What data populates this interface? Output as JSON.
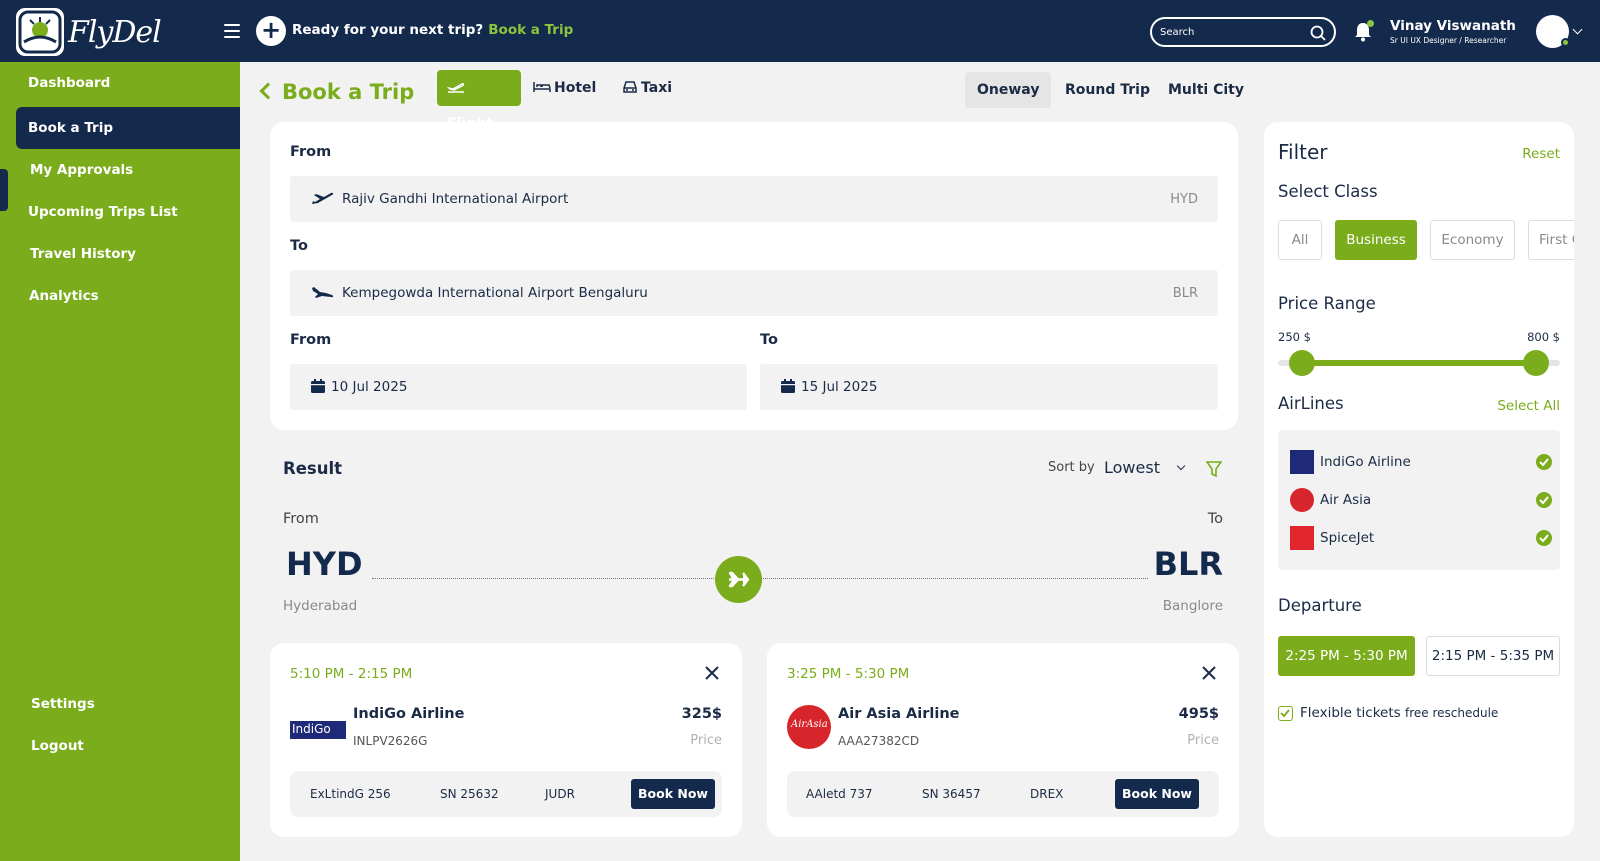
{
  "app": {
    "name": "FlyDel"
  },
  "header": {
    "prompt": "Ready for your next trip?",
    "prompt_link": "Book a Trip",
    "search_placeholder": "Search",
    "user_name": "Vinay Viswanath",
    "user_role": "Sr UI UX Designer / Researcher"
  },
  "sidebar": {
    "items": [
      {
        "label": "Dashboard"
      },
      {
        "label": "Book a Trip"
      },
      {
        "label": "My Approvals"
      },
      {
        "label": "Upcoming Trips List"
      },
      {
        "label": "Travel History"
      },
      {
        "label": "Analytics"
      }
    ],
    "settings": "Settings",
    "logout": "Logout"
  },
  "page": {
    "title": "Book a Trip"
  },
  "mode_tabs": [
    {
      "label": "Flight",
      "active": true
    },
    {
      "label": "Hotel"
    },
    {
      "label": "Taxi"
    }
  ],
  "trip_tabs": [
    {
      "label": "Oneway",
      "active": true
    },
    {
      "label": "Round Trip"
    },
    {
      "label": "Multi City"
    }
  ],
  "search": {
    "from_label": "From",
    "from_airport": "Rajiv Gandhi International Airport",
    "from_code": "HYD",
    "to_label": "To",
    "to_airport": "Kempegowda International Airport Bengaluru",
    "to_code": "BLR",
    "date_from_label": "From",
    "date_from": "10 Jul 2025",
    "date_to_label": "To",
    "date_to": "15 Jul 2025"
  },
  "result": {
    "title": "Result",
    "sort_label": "Sort by",
    "sort_value": "Lowest",
    "from_label": "From",
    "to_label": "To",
    "from_code": "HYD",
    "to_code": "BLR",
    "from_city": "Hyderabad",
    "to_city": "Banglore"
  },
  "flights": [
    {
      "time": "5:10 PM - 2:15 PM",
      "airline": "IndiGo Airline",
      "logo_text": "IndiGo",
      "code": "INLPV2626G",
      "price": "325$",
      "price_label": "Price",
      "details": [
        "ExLtindG 256",
        "SN 25632",
        "JUDR"
      ],
      "book": "Book Now"
    },
    {
      "time": "3:25 PM - 5:30 PM",
      "airline": "Air Asia Airline",
      "logo_text": "AirAsia",
      "code": "AAA27382CD",
      "price": "495$",
      "price_label": "Price",
      "details": [
        "AAletd 737",
        "SN 36457",
        "DREX"
      ],
      "book": "Book Now"
    }
  ],
  "filter": {
    "title": "Filter",
    "reset": "Reset",
    "class_title": "Select Class",
    "classes": [
      {
        "label": "All"
      },
      {
        "label": "Business",
        "active": true
      },
      {
        "label": "Economy"
      },
      {
        "label": "First Class"
      }
    ],
    "price_title": "Price Range",
    "price_min": "250 $",
    "price_max": "800 $",
    "price_min_fraction": 0.0,
    "price_max_fraction": 1.0,
    "airlines_title": "AirLines",
    "select_all": "Select All",
    "airlines": [
      {
        "name": "IndiGo Airline",
        "checked": true
      },
      {
        "name": "Air Asia",
        "checked": true
      },
      {
        "name": "SpiceJet",
        "checked": true
      }
    ],
    "departure_title": "Departure",
    "departures": [
      {
        "label": "2:25 PM - 5:30 PM",
        "active": true
      },
      {
        "label": "2:15 PM - 5:35 PM"
      }
    ],
    "flexible": "Flexible tickets",
    "flexible_small": "free reschedule"
  },
  "colors": {
    "brand_green": "#7aac1c",
    "navy": "#142a4c",
    "airasia_red": "#d7262b",
    "indigo_blue": "#1e2a78",
    "spicejet_red": "#e0262c"
  }
}
